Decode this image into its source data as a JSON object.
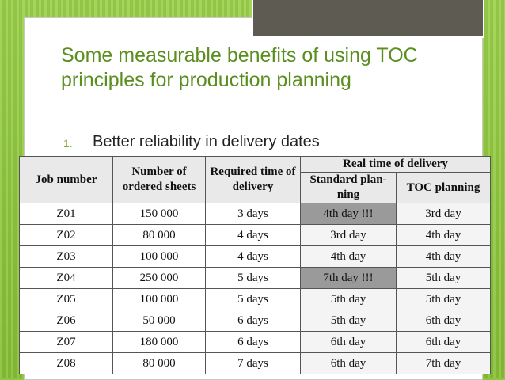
{
  "slide": {
    "title": "Some measurable benefits of using TOC principles for production planning",
    "bullet_number": "1.",
    "bullet_text": "Better reliability in delivery dates"
  },
  "table": {
    "headers": {
      "job_number": "Job number",
      "ordered_sheets": "Number of ordered sheets",
      "required_time": "Required time of delivery",
      "real_time": "Real time of delivery",
      "standard": "Standard plan- ning",
      "toc": "TOC planning"
    },
    "rows": [
      {
        "job": "Z01",
        "sheets": "150 000",
        "required": "3 days",
        "standard": "4th day !!!",
        "toc": "3rd day",
        "highlight": true
      },
      {
        "job": "Z02",
        "sheets": "80 000",
        "required": "4 days",
        "standard": "3rd day",
        "toc": "4th day",
        "highlight": false
      },
      {
        "job": "Z03",
        "sheets": "100 000",
        "required": "4 days",
        "standard": "4th day",
        "toc": "4th day",
        "highlight": false
      },
      {
        "job": "Z04",
        "sheets": "250 000",
        "required": "5 days",
        "standard": "7th day !!!",
        "toc": "5th day",
        "highlight": true
      },
      {
        "job": "Z05",
        "sheets": "100 000",
        "required": "5 days",
        "standard": "5th day",
        "toc": "5th day",
        "highlight": false
      },
      {
        "job": "Z06",
        "sheets": "50 000",
        "required": "6 days",
        "standard": "5th day",
        "toc": "6th day",
        "highlight": false
      },
      {
        "job": "Z07",
        "sheets": "180 000",
        "required": "6 days",
        "standard": "6th day",
        "toc": "6th day",
        "highlight": false
      },
      {
        "job": "Z08",
        "sheets": "80 000",
        "required": "7 days",
        "standard": "6th day",
        "toc": "7th day",
        "highlight": false
      }
    ]
  },
  "colors": {
    "background_green": "#8fc640",
    "title_green": "#5a8e1f",
    "tab_gray": "#5e5b52",
    "highlight_gray": "#9a9a9a"
  }
}
